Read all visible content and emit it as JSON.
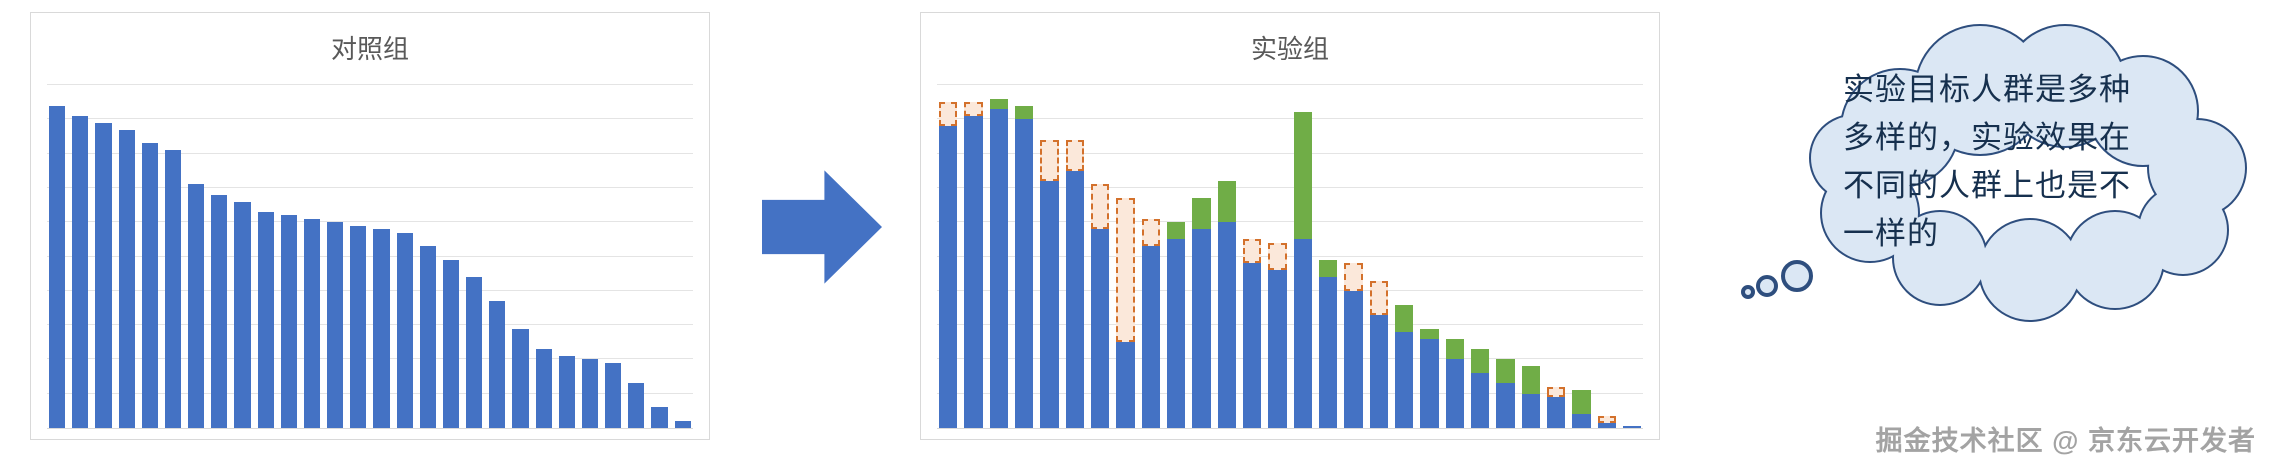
{
  "chart_data": [
    {
      "type": "bar",
      "title": "对照组",
      "categories": [],
      "values": [
        94,
        91,
        89,
        87,
        83,
        81,
        71,
        68,
        66,
        63,
        62,
        61,
        60,
        59,
        58,
        57,
        53,
        49,
        44,
        37,
        29,
        23,
        21,
        20,
        19,
        13,
        6,
        2
      ],
      "xlabel": "",
      "ylabel": "",
      "ylim": [
        0,
        100
      ],
      "y_step": 10,
      "grid": true,
      "legend": "none",
      "bar_color": "#4472C4"
    },
    {
      "type": "bar",
      "title": "实验组",
      "stacked": true,
      "categories": [],
      "series": [
        {
          "name": "base",
          "color": "#4472C4",
          "style": "solid",
          "values": [
            88,
            91,
            93,
            90,
            72,
            75,
            58,
            25,
            53,
            55,
            58,
            60,
            48,
            46,
            55,
            44,
            40,
            33,
            28,
            26,
            20,
            16,
            13,
            10,
            9,
            4,
            1.5,
            0.5
          ]
        },
        {
          "name": "gain",
          "color": "#70AD47",
          "style": "solid",
          "values": [
            0,
            0,
            3,
            4,
            0,
            0,
            0,
            0,
            0,
            5,
            9,
            12,
            0,
            0,
            37,
            5,
            0,
            0,
            8,
            3,
            6,
            7,
            7,
            8,
            0,
            7,
            0,
            0
          ]
        },
        {
          "name": "loss",
          "color": "#FBE8DA",
          "style": "dashed-outline",
          "outline_color": "#D3712C",
          "values": [
            7,
            4,
            0,
            0,
            12,
            9,
            13,
            42,
            8,
            0,
            0,
            0,
            7,
            8,
            0,
            0,
            8,
            10,
            0,
            0,
            0,
            0,
            0,
            0,
            3,
            0,
            2,
            0
          ]
        }
      ],
      "xlabel": "",
      "ylabel": "",
      "ylim": [
        0,
        100
      ],
      "y_step": 10,
      "grid": true,
      "legend": "none"
    }
  ],
  "bubble": {
    "lines": [
      "实验目标人群是多种",
      "多样的，实验效果在",
      "不同的人群上也是不",
      "一样的"
    ],
    "fill_color": "#DBE7F4",
    "outline_color": "#2E4E7E",
    "text_color": "#16304E"
  },
  "arrow": {
    "direction": "right",
    "color": "#4472C4"
  },
  "watermark": "掘金技术社区 @ 京东云开发者",
  "colors": {
    "bar_blue": "#4472C4",
    "bar_green": "#70AD47",
    "loss_fill": "#FBE8DA",
    "loss_outline": "#D3712C",
    "gridline": "#E4E4E4",
    "panel_border": "#D9D9D9",
    "title_text": "#595959",
    "watermark_text": "#A3A3A3"
  }
}
